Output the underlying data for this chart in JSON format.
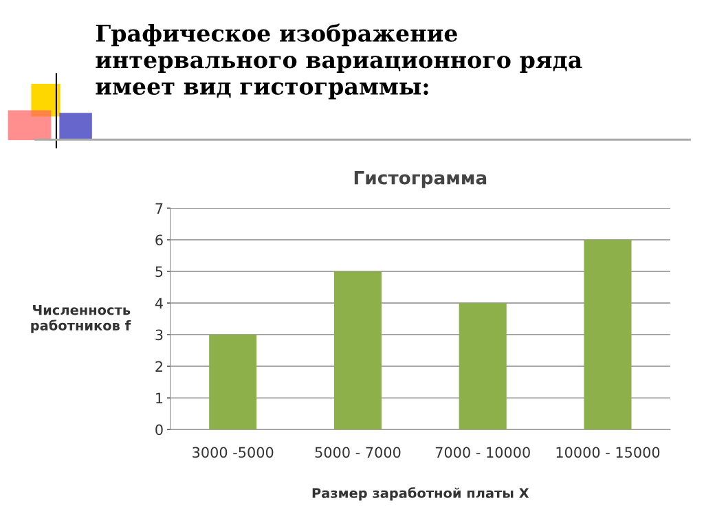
{
  "chart_data": {
    "type": "bar",
    "title": "Гистограмма",
    "annotations": [
      "Графическое изображение\nинтервального вариационного ряда\nимеет вид гистограммы:"
    ],
    "xlabel": "Размер заработной платы X",
    "ylabel": "Численность\nработников f",
    "categories": [
      "3000 -5000",
      "5000 - 7000",
      "7000 - 10000",
      "10000 - 15000"
    ],
    "values": [
      3,
      5,
      4,
      6
    ],
    "color": "#8db04a",
    "ylim": [
      0,
      7
    ],
    "yticks": [
      0,
      1,
      2,
      3,
      4,
      5,
      6,
      7
    ],
    "grid": "y"
  }
}
